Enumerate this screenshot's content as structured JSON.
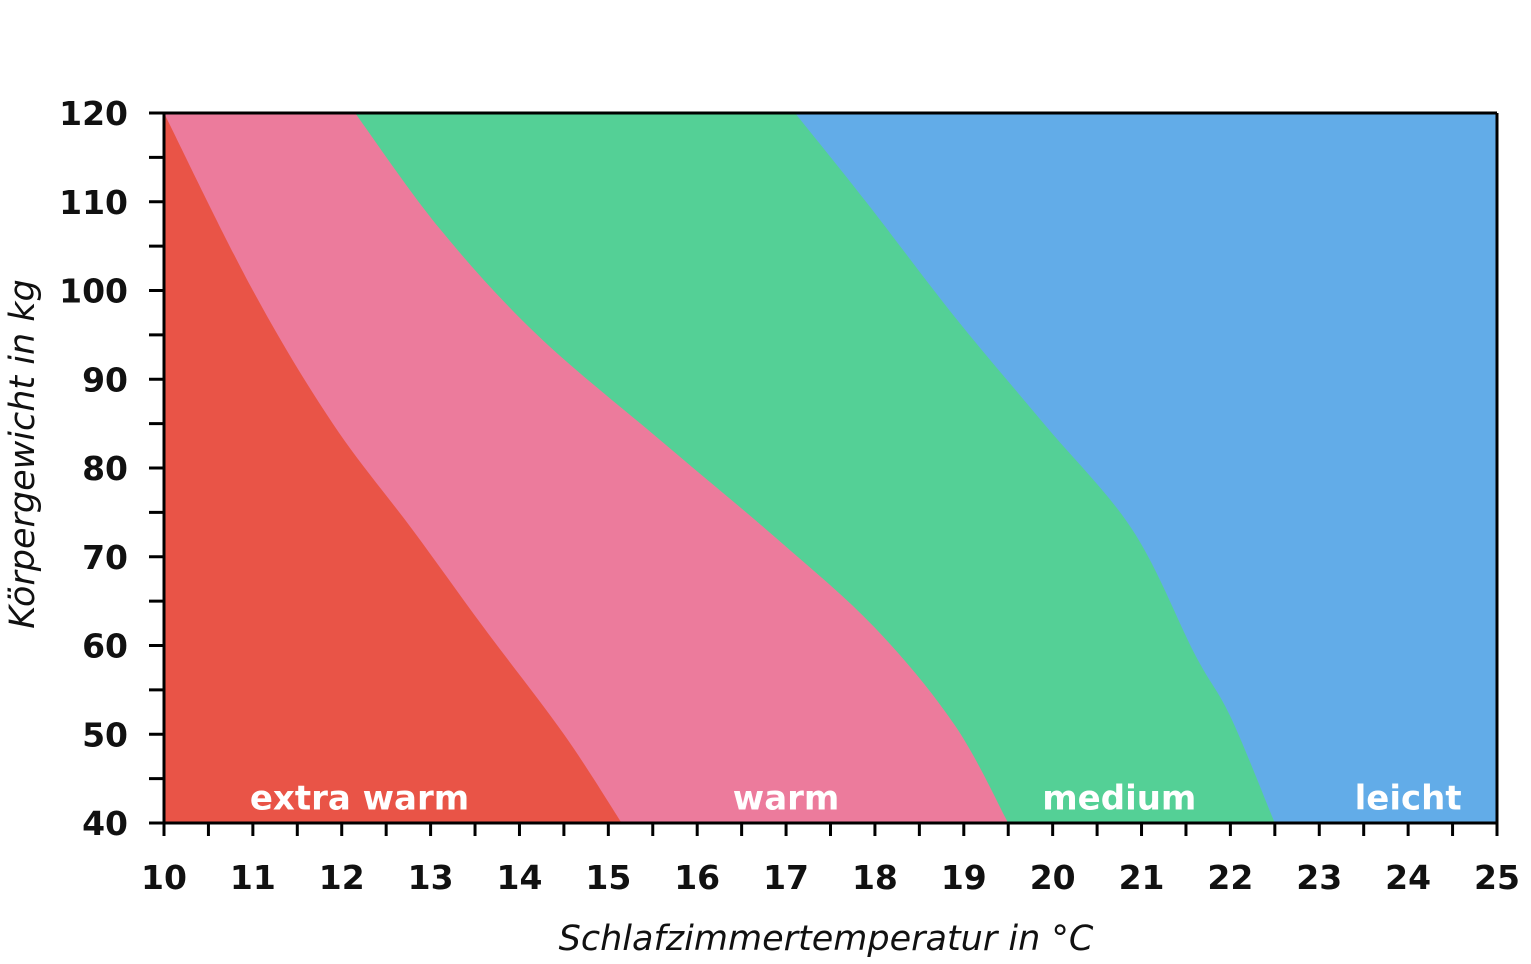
{
  "chart_data": {
    "type": "area",
    "title": "",
    "xlabel": "Schlafzimmertemperatur in °C",
    "ylabel": "Körpergewicht in kg",
    "xlim": [
      10,
      25
    ],
    "ylim": [
      40,
      120
    ],
    "x_ticks": [
      10,
      11,
      12,
      13,
      14,
      15,
      16,
      17,
      18,
      19,
      20,
      21,
      22,
      23,
      24,
      25
    ],
    "y_ticks": [
      40,
      50,
      60,
      70,
      80,
      90,
      100,
      110,
      120
    ],
    "x_minor_step": 0.5,
    "y_minor_step": 5,
    "grid": false,
    "legend": "none",
    "regions": [
      {
        "name": "extra warm",
        "label": "extra warm",
        "color": "#E95447",
        "label_x": 12.2,
        "label_y": 43
      },
      {
        "name": "warm",
        "label": "warm",
        "color": "#EC7B9C",
        "label_x": 17.0,
        "label_y": 43
      },
      {
        "name": "medium",
        "label": "medium",
        "color": "#54D096",
        "label_x": 20.75,
        "label_y": 43
      },
      {
        "name": "leicht",
        "label": "leicht",
        "color": "#62ACE8",
        "label_x": 24.0,
        "label_y": 43
      }
    ],
    "boundaries": [
      {
        "between": [
          "extra warm",
          "warm"
        ],
        "points": [
          [
            10.0,
            120
          ],
          [
            11.0,
            100
          ],
          [
            11.9,
            85
          ],
          [
            12.8,
            73
          ],
          [
            13.6,
            62
          ],
          [
            14.5,
            50
          ],
          [
            15.15,
            40
          ]
        ]
      },
      {
        "between": [
          "warm",
          "medium"
        ],
        "points": [
          [
            12.15,
            120
          ],
          [
            13.1,
            107
          ],
          [
            14.2,
            95
          ],
          [
            15.6,
            83
          ],
          [
            16.9,
            72
          ],
          [
            18.0,
            62
          ],
          [
            18.9,
            51
          ],
          [
            19.5,
            40
          ]
        ]
      },
      {
        "between": [
          "medium",
          "leicht"
        ],
        "points": [
          [
            17.1,
            120
          ],
          [
            17.9,
            110
          ],
          [
            18.9,
            97
          ],
          [
            19.9,
            85
          ],
          [
            20.9,
            73
          ],
          [
            21.6,
            59
          ],
          [
            22.0,
            52
          ],
          [
            22.5,
            40
          ]
        ]
      }
    ]
  }
}
